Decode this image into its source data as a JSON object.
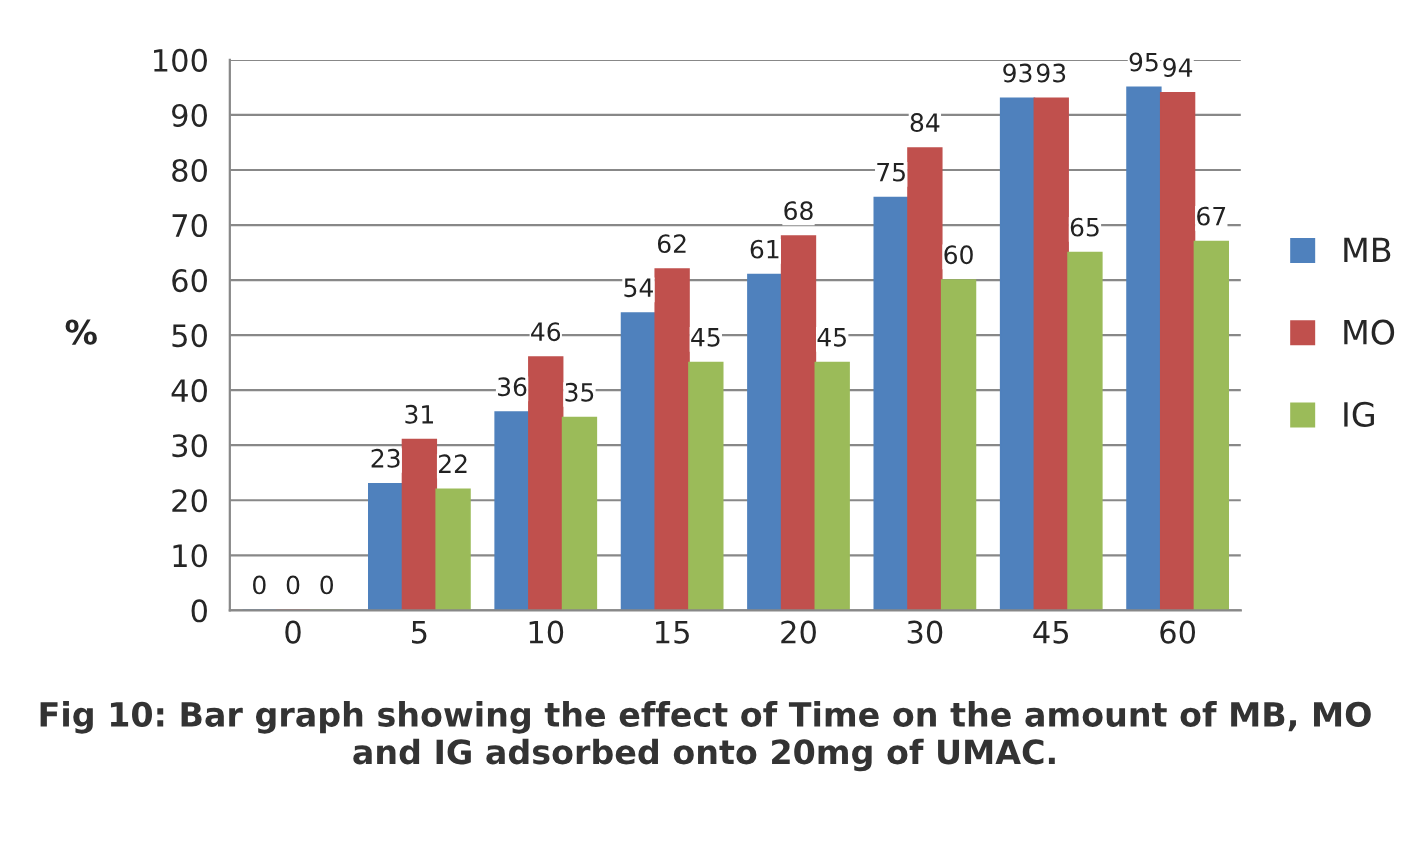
{
  "chart_data": {
    "type": "bar",
    "ylabel": "%",
    "categories": [
      "0",
      "5",
      "10",
      "15",
      "20",
      "30",
      "45",
      "60"
    ],
    "series": [
      {
        "name": "MB",
        "color": "#4f81bd",
        "values": [
          0,
          23,
          36,
          54,
          61,
          75,
          93,
          95
        ]
      },
      {
        "name": "MO",
        "color": "#c0504d",
        "values": [
          0,
          31,
          46,
          62,
          68,
          84,
          93,
          94
        ]
      },
      {
        "name": "IG",
        "color": "#9bbb59",
        "values": [
          0,
          22,
          35,
          45,
          45,
          60,
          65,
          67
        ]
      }
    ],
    "ylim": [
      0,
      100
    ],
    "yticks": [
      0,
      10,
      20,
      30,
      40,
      50,
      60,
      70,
      80,
      90,
      100
    ],
    "grid": "y",
    "legend": "right",
    "data_labels": true,
    "annotations": [
      "Fig 10: Bar graph showing the effect of Time on the amount of MB, MO and IG adsorbed onto 20mg of UMAC."
    ]
  }
}
